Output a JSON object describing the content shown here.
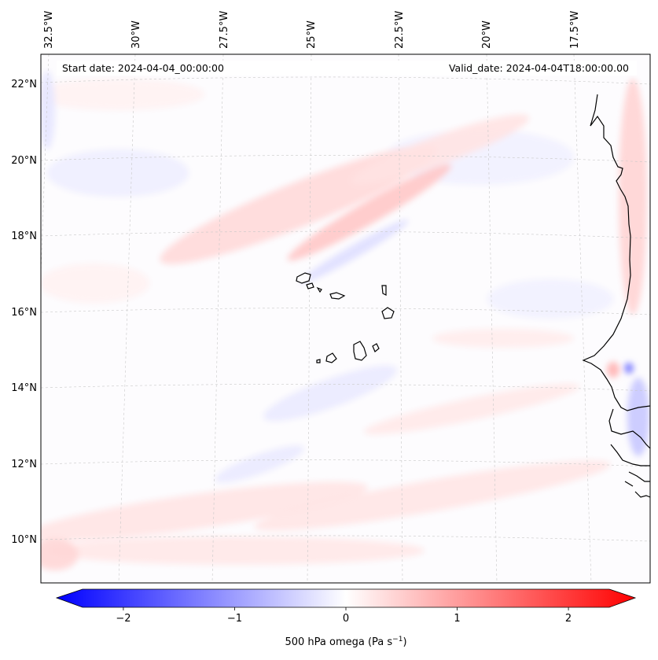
{
  "header": {
    "start_date": "Start date: 2024-04-04_00:00:00",
    "valid_date": "Valid_date: 2024-04-04T18:00:00.00"
  },
  "map": {
    "lon_labels": [
      "32.5°W",
      "30°W",
      "27.5°W",
      "25°W",
      "22.5°W",
      "20°W",
      "17.5°W"
    ],
    "lat_labels": [
      "22°N",
      "20°N",
      "18°N",
      "16°N",
      "14°N",
      "12°N",
      "10°N"
    ],
    "field": "500 hPa omega",
    "colors": {
      "negative": "#0000ff",
      "neutral": "#ffffff",
      "positive": "#ff0000"
    }
  },
  "colorbar": {
    "label_prefix": "500 hPa omega (Pa s",
    "label_exp": "−1",
    "label_suffix": ")",
    "tick_labels": [
      "−2",
      "−1",
      "0",
      "1",
      "2"
    ],
    "vmin": -2.6,
    "vmax": 2.6,
    "ticks": [
      -2,
      -1,
      0,
      1,
      2
    ]
  }
}
